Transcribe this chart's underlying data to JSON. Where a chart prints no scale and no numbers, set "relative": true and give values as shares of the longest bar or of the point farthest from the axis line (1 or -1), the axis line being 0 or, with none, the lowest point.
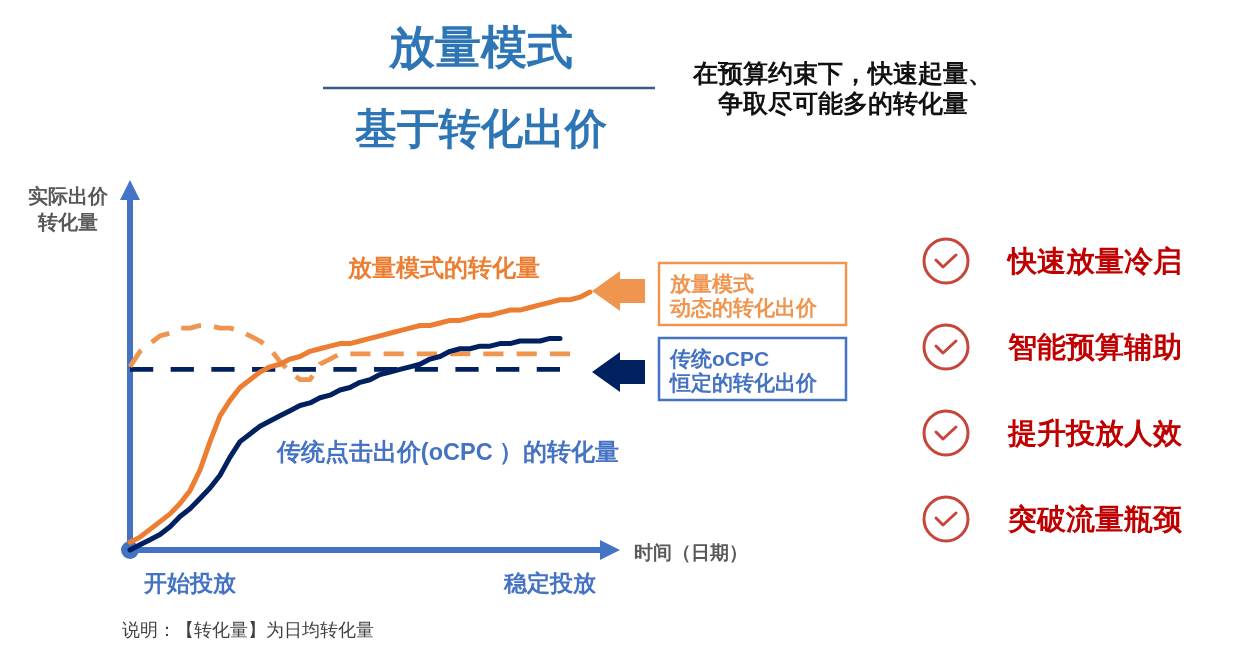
{
  "chart_data": {
    "type": "line",
    "title": "放量模式",
    "subtitle": "基于转化出价",
    "xlabel": "时间（日期）",
    "ylabel": "实际出价转化量",
    "relative": true,
    "legend": "right",
    "categories": [
      null,
      null,
      null,
      null,
      null,
      null,
      "开始投放",
      null,
      null,
      null,
      null,
      null,
      null,
      null,
      null,
      null,
      null,
      null,
      null,
      null,
      null,
      null,
      null,
      null,
      null,
      null,
      null,
      null,
      null,
      null,
      null,
      null,
      null,
      null,
      null,
      null,
      null,
      null,
      null,
      null,
      null,
      null,
      "稳定投放",
      null,
      null,
      null,
      null,
      null
    ],
    "series": [
      {
        "name": "放量模式的转化量",
        "color": "#ed7d31",
        "line_style": "solid",
        "values": [
          0.03,
          0.05,
          0.08,
          0.11,
          0.14,
          0.18,
          0.23,
          0.31,
          0.42,
          0.52,
          0.58,
          0.63,
          0.66,
          0.69,
          0.71,
          0.72,
          0.74,
          0.75,
          0.77,
          0.78,
          0.79,
          0.8,
          0.8,
          0.81,
          0.82,
          0.83,
          0.84,
          0.85,
          0.86,
          0.87,
          0.87,
          0.88,
          0.89,
          0.89,
          0.9,
          0.91,
          0.91,
          0.92,
          0.93,
          0.93,
          0.94,
          0.95,
          0.96,
          0.97,
          0.97,
          0.98,
          1,
          null
        ]
      },
      {
        "name": "传统点击出价(oCPC ）的转化量",
        "color": "#002060",
        "line_style": "solid",
        "values": [
          0,
          0.02,
          0.04,
          0.06,
          0.09,
          0.13,
          0.16,
          0.2,
          0.24,
          0.29,
          0.36,
          0.42,
          0.45,
          0.48,
          0.5,
          0.52,
          0.54,
          0.56,
          0.57,
          0.59,
          0.6,
          0.62,
          0.63,
          0.65,
          0.66,
          0.68,
          0.69,
          0.7,
          0.71,
          0.72,
          0.74,
          0.75,
          0.77,
          0.78,
          0.78,
          0.79,
          0.79,
          0.8,
          0.8,
          0.81,
          0.81,
          0.81,
          0.82,
          0.82,
          null,
          null,
          null,
          null
        ]
      },
      {
        "name": "放量模式动态的转化出价",
        "color": "#f0954f",
        "line_style": "dashed",
        "values": [
          0.71,
          0.77,
          0.8,
          0.83,
          0.84,
          0.86,
          0.86,
          0.87,
          0.87,
          0.86,
          0.86,
          0.85,
          0.83,
          0.81,
          0.78,
          0.73,
          0.69,
          0.66,
          0.66,
          0.72,
          0.74,
          0.76,
          0.76,
          0.76,
          0.76,
          0.76,
          0.76,
          0.76,
          0.76,
          0.76,
          0.76,
          0.76,
          0.76,
          0.76,
          0.76,
          0.76,
          0.76,
          0.76,
          0.76,
          0.76,
          0.76,
          0.76,
          0.76,
          0.76,
          0.76,
          null,
          null,
          null
        ]
      },
      {
        "name": "传统oCPC恒定的转化出价",
        "color": "#002060",
        "line_style": "dashed",
        "values": [
          0.7,
          0.7,
          0.7,
          0.7,
          0.7,
          0.7,
          0.7,
          0.7,
          0.7,
          0.7,
          0.7,
          0.7,
          0.7,
          0.7,
          0.7,
          0.7,
          0.7,
          0.7,
          0.7,
          0.7,
          0.7,
          0.7,
          0.7,
          0.7,
          0.7,
          0.7,
          0.7,
          0.7,
          0.7,
          0.7,
          0.7,
          0.7,
          0.7,
          0.7,
          0.7,
          0.7,
          0.7,
          0.7,
          0.7,
          0.7,
          0.7,
          0.7,
          0.7,
          0.7,
          null,
          null,
          null,
          null
        ]
      }
    ],
    "annotations": [
      "在预算约束下，快速起量、争取尽可能多的转化量",
      "快速放量冷启",
      "智能预算辅助",
      "提升投放人效",
      "突破流量瓶颈",
      "说明：【转化量】为日均转化量"
    ]
  }
}
